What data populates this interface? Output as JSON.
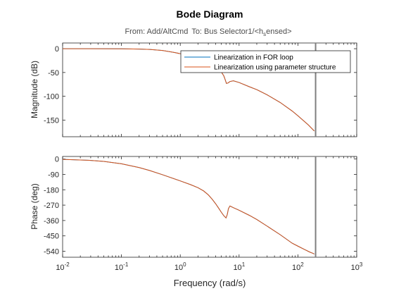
{
  "chart_data": {
    "type": "line",
    "title": "Bode Diagram",
    "subtitle_from": "From: Add/AltCmd",
    "subtitle_to": "To: Bus Selector1/<h",
    "subtitle_sub": "s",
    "subtitle_end": "ensed>",
    "xlabel": "Frequency (rad/s)",
    "xscale": "log",
    "xlim": [
      0.01,
      1000
    ],
    "x_ticks": [
      {
        "base": "10",
        "exp": "-2"
      },
      {
        "base": "10",
        "exp": "-1"
      },
      {
        "base": "10",
        "exp": "0"
      },
      {
        "base": "10",
        "exp": "1"
      },
      {
        "base": "10",
        "exp": "2"
      },
      {
        "base": "10",
        "exp": "3"
      }
    ],
    "vertical_line_x": 200,
    "legend": {
      "placement": "top-right of magnitude axes",
      "entries": [
        "Linearization in FOR loop",
        "Linearization using parameter structure"
      ]
    },
    "series_colors": [
      "#0072BD",
      "#D95319"
    ],
    "line_color": "#7f7f7f",
    "panels": [
      {
        "name": "magnitude",
        "ylabel": "Magnitude (dB)",
        "ylim": [
          -185,
          12
        ],
        "y_ticks": [
          "0",
          "-50",
          "-100",
          "-150"
        ],
        "y_tick_values": [
          0,
          -50,
          -100,
          -150
        ],
        "x": [
          0.01,
          0.03,
          0.1,
          0.2,
          0.3,
          0.5,
          0.8,
          1,
          1.5,
          2,
          3,
          4,
          5,
          5.5,
          5.8,
          6.1,
          6.5,
          7,
          8,
          10,
          15,
          20,
          30,
          50,
          80,
          100,
          150,
          190
        ],
        "y": [
          0,
          0,
          -0.2,
          -0.7,
          -1.6,
          -3.8,
          -8,
          -10.5,
          -16.5,
          -22,
          -31,
          -39,
          -49,
          -57,
          -65,
          -73,
          -72,
          -69,
          -67.5,
          -71,
          -80,
          -86,
          -97,
          -113,
          -131,
          -141,
          -160,
          -173
        ]
      },
      {
        "name": "phase",
        "ylabel": "Phase (deg)",
        "ylim": [
          -575,
          15
        ],
        "y_ticks": [
          "0",
          "-90",
          "-180",
          "-270",
          "-360",
          "-450",
          "-540"
        ],
        "y_tick_values": [
          0,
          -90,
          -180,
          -270,
          -360,
          -450,
          -540
        ],
        "x": [
          0.01,
          0.03,
          0.05,
          0.1,
          0.2,
          0.3,
          0.5,
          1,
          1.5,
          2,
          2.5,
          3,
          3.5,
          4,
          4.5,
          5,
          5.5,
          6,
          6.3,
          6.6,
          7,
          8,
          10,
          15,
          20,
          30,
          50,
          80,
          100,
          130,
          160,
          180,
          190
        ],
        "y": [
          -2,
          -8,
          -14,
          -28,
          -50,
          -67,
          -92,
          -128,
          -150,
          -168,
          -187,
          -210,
          -236,
          -262,
          -288,
          -312,
          -332,
          -345,
          -325,
          -290,
          -275,
          -285,
          -300,
          -330,
          -354,
          -393,
          -443,
          -493,
          -510,
          -530,
          -545,
          -552,
          -556
        ]
      }
    ]
  }
}
